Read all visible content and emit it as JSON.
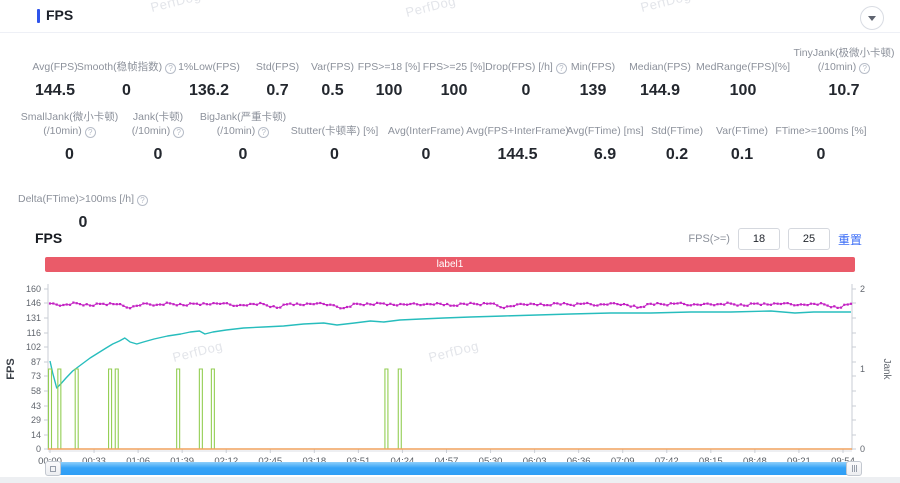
{
  "panel": {
    "title": "FPS"
  },
  "watermark": {
    "text": "PerfDog"
  },
  "metrics": {
    "row1": [
      {
        "label": "Avg(FPS)",
        "value": "144.5",
        "help": false
      },
      {
        "label": "Smooth(稳帧指数)",
        "value": "0",
        "help": true
      },
      {
        "label": "1%Low(FPS)",
        "value": "136.2",
        "help": false
      },
      {
        "label": "Std(FPS)",
        "value": "0.7",
        "help": false
      },
      {
        "label": "Var(FPS)",
        "value": "0.5",
        "help": false
      },
      {
        "label": "FPS>=18 [%]",
        "value": "100",
        "help": false
      },
      {
        "label": "FPS>=25 [%]",
        "value": "100",
        "help": false
      },
      {
        "label": "Drop(FPS) [/h]",
        "value": "0",
        "help": true
      },
      {
        "label": "Min(FPS)",
        "value": "139",
        "help": false
      },
      {
        "label": "Median(FPS)",
        "value": "144.9",
        "help": false
      },
      {
        "label": "MedRange(FPS)[%]",
        "value": "100",
        "help": false
      },
      {
        "label": "TinyJank(极微小卡顿)",
        "label2": "(/10min)",
        "value": "10.7",
        "help": true
      }
    ],
    "row2": [
      {
        "label": "SmallJank(微小卡顿)",
        "label2": "(/10min)",
        "value": "0",
        "help": true
      },
      {
        "label": "Jank(卡顿)",
        "label2": "(/10min)",
        "value": "0",
        "help": true
      },
      {
        "label": "BigJank(严重卡顿)",
        "label2": "(/10min)",
        "value": "0",
        "help": true
      },
      {
        "label": "Stutter(卡顿率) [%]",
        "value": "0",
        "help": false
      },
      {
        "label": "Avg(InterFrame)",
        "value": "0",
        "help": false
      },
      {
        "label": "Avg(FPS+InterFrame)",
        "value": "144.5",
        "help": false
      },
      {
        "label": "Avg(FTime) [ms]",
        "value": "6.9",
        "help": false
      },
      {
        "label": "Std(FTime)",
        "value": "0.2",
        "help": false
      },
      {
        "label": "Var(FTime)",
        "value": "0.1",
        "help": false
      },
      {
        "label": "FTime>=100ms [%]",
        "value": "0",
        "help": false
      }
    ],
    "row3": [
      {
        "label": "Delta(FTime)>100ms [/h]",
        "value": "0",
        "help": true
      }
    ]
  },
  "chart_section": {
    "title": "FPS",
    "threshold_label": "FPS(>=)",
    "threshold_inputs": [
      "18",
      "25"
    ],
    "reset_label": "重置",
    "annotation_label": "label1",
    "annotation_color": "#ea5b69"
  },
  "chart_data": {
    "type": "line",
    "title": "FPS",
    "ylabel_left": "FPS",
    "ylabel_right": "Jank",
    "ylim_left": [
      0,
      160
    ],
    "yticks_left": [
      0,
      14,
      29,
      43,
      58,
      73,
      87,
      102,
      116,
      131,
      146,
      160
    ],
    "ylim_right": [
      0,
      2
    ],
    "yticks_right": [
      0,
      1,
      2
    ],
    "x_unit": "seconds",
    "xlim": [
      0,
      600
    ],
    "xtick_labels": [
      "00:00",
      "00:33",
      "01:06",
      "01:39",
      "02:12",
      "02:45",
      "03:18",
      "03:51",
      "04:24",
      "04:57",
      "05:30",
      "06:03",
      "06:36",
      "07:09",
      "07:42",
      "08:15",
      "08:48",
      "09:21",
      "09:54"
    ],
    "xtick_step_seconds": 33,
    "grid": false,
    "legend": "none",
    "series": [
      {
        "name": "FPS",
        "color": "#c322c3",
        "axis": "left",
        "marker": true,
        "x_start": 0,
        "x_step": 10,
        "values": [
          145.5,
          144.0,
          145.8,
          143.5,
          145.2,
          144.8,
          140.8,
          145.5,
          144.2,
          145.6,
          143.8,
          145.3,
          144.6,
          145.7,
          143.2,
          145.1,
          144.9,
          141.2,
          145.4,
          143.9,
          145.6,
          144.3,
          140.9,
          145.2,
          144.7,
          145.5,
          143.6,
          145.0,
          144.4,
          145.8,
          143.3,
          145.2,
          144.8,
          145.5,
          141.0,
          144.6,
          145.3,
          143.8,
          145.6,
          144.1,
          145.4,
          143.5,
          145.7,
          144.9,
          141.3,
          145.2,
          144.5,
          145.6,
          143.7,
          145.1,
          144.8,
          145.4,
          143.4,
          145.5,
          144.2,
          145.7,
          143.9,
          145.3,
          144.6,
          141.1,
          145.2
        ]
      },
      {
        "name": "FPS running average",
        "color": "#27bdbd",
        "axis": "left",
        "marker": false,
        "points": [
          [
            0,
            88
          ],
          [
            2,
            76
          ],
          [
            5,
            61
          ],
          [
            8,
            65
          ],
          [
            12,
            71
          ],
          [
            17,
            78
          ],
          [
            23,
            84
          ],
          [
            30,
            91
          ],
          [
            36,
            96
          ],
          [
            42,
            101
          ],
          [
            47,
            105
          ],
          [
            52,
            108
          ],
          [
            56,
            111
          ],
          [
            60,
            107
          ],
          [
            65,
            105
          ],
          [
            70,
            107
          ],
          [
            78,
            110
          ],
          [
            88,
            113
          ],
          [
            98,
            115
          ],
          [
            105,
            117
          ],
          [
            112,
            118
          ],
          [
            116,
            115
          ],
          [
            122,
            117
          ],
          [
            132,
            119
          ],
          [
            145,
            121
          ],
          [
            160,
            122
          ],
          [
            175,
            123
          ],
          [
            190,
            125
          ],
          [
            205,
            126
          ],
          [
            215,
            124
          ],
          [
            228,
            126
          ],
          [
            240,
            128
          ],
          [
            250,
            127
          ],
          [
            262,
            129
          ],
          [
            278,
            130
          ],
          [
            295,
            131
          ],
          [
            315,
            132
          ],
          [
            340,
            133
          ],
          [
            365,
            134
          ],
          [
            390,
            135
          ],
          [
            420,
            136
          ],
          [
            450,
            136
          ],
          [
            480,
            137
          ],
          [
            510,
            137
          ],
          [
            540,
            138
          ],
          [
            558,
            136
          ],
          [
            572,
            137
          ],
          [
            600,
            137
          ]
        ]
      },
      {
        "name": "Jank",
        "color": "#93ce53",
        "axis": "right",
        "render": "spike",
        "spike_times": [
          0,
          7,
          20,
          45,
          50,
          96,
          113,
          122,
          252,
          262
        ],
        "spike_value": 1
      },
      {
        "name": "BigJank",
        "color": "#f0a25e",
        "axis": "right",
        "render": "constant",
        "const_value": 0
      }
    ]
  },
  "scrollbar": {
    "type": "range-slider",
    "range_percent": [
      0,
      100
    ]
  }
}
